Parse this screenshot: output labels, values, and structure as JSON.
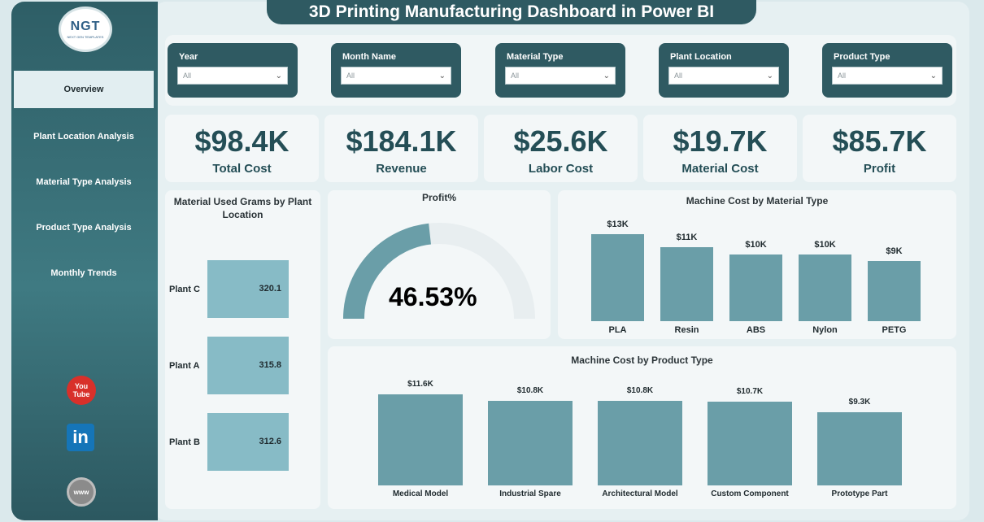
{
  "title": "3D Printing Manufacturing Dashboard in Power BI",
  "logo": {
    "mark": "NGT",
    "tagline": "NEXT GEN TEMPLATES"
  },
  "nav": [
    {
      "label": "Overview",
      "active": true
    },
    {
      "label": "Plant Location Analysis"
    },
    {
      "label": "Material Type Analysis"
    },
    {
      "label": "Product Type Analysis"
    },
    {
      "label": "Monthly Trends"
    }
  ],
  "social": {
    "youtube_top": "You",
    "youtube_bottom": "Tube",
    "linkedin": "in",
    "www": "www"
  },
  "filters": [
    {
      "label": "Year",
      "value": "All"
    },
    {
      "label": "Month Name",
      "value": "All"
    },
    {
      "label": "Material Type",
      "value": "All"
    },
    {
      "label": "Plant Location",
      "value": "All"
    },
    {
      "label": "Product Type",
      "value": "All"
    }
  ],
  "kpis": [
    {
      "value": "$98.4K",
      "label": "Total Cost"
    },
    {
      "value": "$184.1K",
      "label": "Revenue"
    },
    {
      "value": "$25.6K",
      "label": "Labor Cost"
    },
    {
      "value": "$19.7K",
      "label": "Material Cost"
    },
    {
      "value": "$85.7K",
      "label": "Profit"
    }
  ],
  "colors": {
    "accent": "#2f5a62",
    "bar": "#6a9ea8",
    "bar_light": "#87bbc6"
  },
  "chart_data": [
    {
      "type": "bar",
      "orientation": "horizontal",
      "title_line1": "Material Used Grams by Plant",
      "title_line2": "Location",
      "categories": [
        "Plant C",
        "Plant A",
        "Plant B"
      ],
      "values": [
        320.1,
        315.8,
        312.6
      ],
      "labels": [
        "320.1",
        "315.8",
        "312.6"
      ]
    },
    {
      "type": "gauge",
      "title": "Profit%",
      "value": 46.53,
      "label": "46.53%"
    },
    {
      "type": "bar",
      "title": "Machine Cost by Material Type",
      "categories": [
        "PLA",
        "Resin",
        "ABS",
        "Nylon",
        "PETG"
      ],
      "values": [
        13,
        11,
        10,
        10,
        9
      ],
      "labels": [
        "$13K",
        "$11K",
        "$10K",
        "$10K",
        "$9K"
      ]
    },
    {
      "type": "bar",
      "title": "Machine Cost by Product Type",
      "categories": [
        "Medical Model",
        "Industrial Spare",
        "Architectural Model",
        "Custom Component",
        "Prototype Part"
      ],
      "values": [
        11.6,
        10.8,
        10.8,
        10.7,
        9.3
      ],
      "labels": [
        "$11.6K",
        "$10.8K",
        "$10.8K",
        "$10.7K",
        "$9.3K"
      ]
    }
  ]
}
